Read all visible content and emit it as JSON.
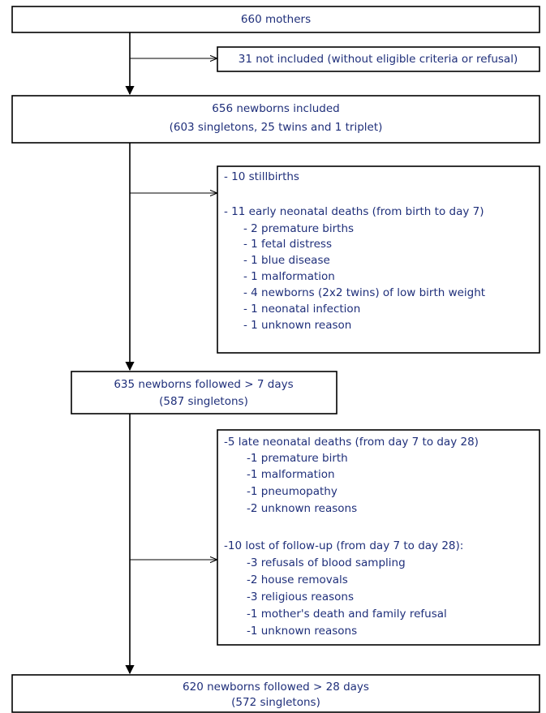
{
  "nodes": [
    {
      "lines": [
        "660 mothers"
      ]
    },
    {
      "lines": [
        "31 not included (without eligible criteria or refusal)"
      ]
    },
    {
      "lines": [
        "656 newborns included",
        "(603 singletons, 25 twins and 1 triplet)"
      ]
    },
    {
      "lines": [
        "- 10 stillbirths",
        "- 11 early neonatal deaths (from birth to day 7)",
        "- 2 premature births",
        "- 1 fetal distress",
        "- 1 blue disease",
        "- 1 malformation",
        "- 4 newborns (2x2 twins) of low birth weight",
        "- 1 neonatal infection",
        "- 1 unknown reason"
      ]
    },
    {
      "lines": [
        "635 newborns followed > 7 days",
        "(587 singletons)"
      ]
    },
    {
      "lines": [
        "-5 late neonatal deaths (from day 7 to day 28)",
        "-1 premature birth",
        "-1 malformation",
        "-1 pneumopathy",
        "-2 unknown reasons",
        "-10 lost of follow-up (from day 7 to day 28):",
        "-3 refusals of blood sampling",
        "-2 house removals",
        "-3 religious reasons",
        "-1 mother's death and family refusal",
        "-1 unknown reasons"
      ]
    },
    {
      "lines": [
        "620 newborns followed > 28 days",
        "(572 singletons)"
      ]
    }
  ]
}
